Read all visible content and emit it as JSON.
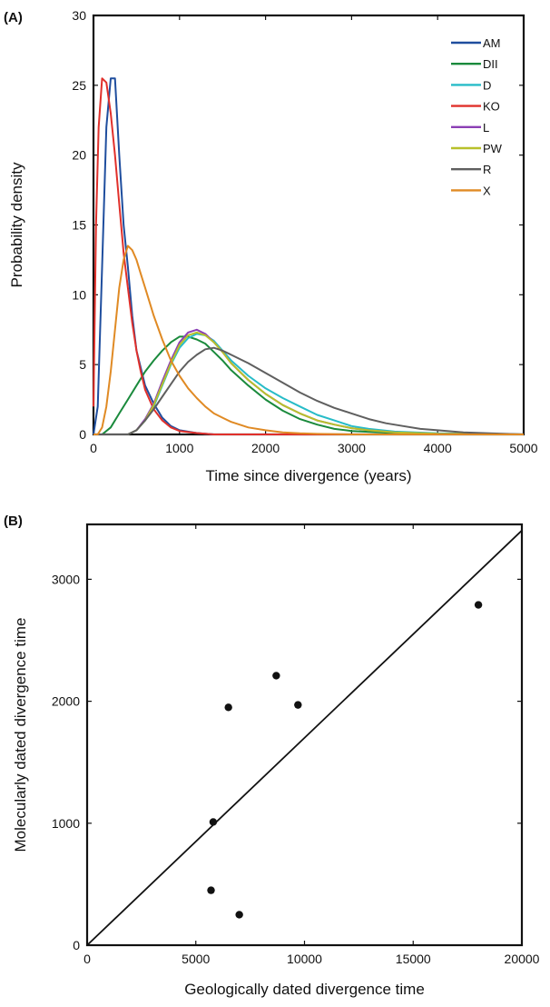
{
  "panels": {
    "a": {
      "label": "(A)"
    },
    "b": {
      "label": "(B)"
    }
  },
  "chart_data": [
    {
      "type": "line",
      "panel": "(A)",
      "title": "",
      "xlabel": "Time since divergence (years)",
      "ylabel": "Probability density",
      "xlim": [
        0,
        5000
      ],
      "ylim": [
        0,
        30
      ],
      "xticks": [
        0,
        1000,
        2000,
        3000,
        4000,
        5000
      ],
      "yticks": [
        0,
        5,
        10,
        15,
        20,
        25,
        30
      ],
      "grid": false,
      "legend_position": "top-right",
      "series": [
        {
          "name": "AM",
          "color": "#1f4e9e",
          "x": [
            0,
            50,
            100,
            150,
            200,
            250,
            300,
            350,
            400,
            450,
            500,
            600,
            700,
            800,
            900,
            1000,
            1200,
            1400,
            5000
          ],
          "y": [
            0,
            2,
            12,
            22,
            25.5,
            25.5,
            20,
            15,
            12,
            8.5,
            6,
            3.5,
            2.2,
            1.2,
            0.6,
            0.3,
            0.1,
            0,
            0
          ]
        },
        {
          "name": "DII",
          "color": "#1a8a3c",
          "x": [
            0,
            100,
            200,
            300,
            400,
            500,
            600,
            700,
            800,
            900,
            1000,
            1100,
            1200,
            1300,
            1400,
            1500,
            1600,
            1800,
            2000,
            2200,
            2400,
            2600,
            2800,
            3000,
            3500,
            4000,
            5000
          ],
          "y": [
            0,
            0,
            0.5,
            1.5,
            2.5,
            3.5,
            4.5,
            5.3,
            6.0,
            6.6,
            7.0,
            7.0,
            6.8,
            6.5,
            5.9,
            5.3,
            4.6,
            3.5,
            2.5,
            1.7,
            1.1,
            0.7,
            0.4,
            0.25,
            0.1,
            0.02,
            0
          ]
        },
        {
          "name": "D",
          "color": "#27bcc8",
          "x": [
            0,
            200,
            400,
            500,
            600,
            700,
            800,
            900,
            1000,
            1100,
            1200,
            1300,
            1400,
            1500,
            1600,
            1800,
            2000,
            2200,
            2400,
            2600,
            2800,
            3000,
            3200,
            3500,
            4000,
            5000
          ],
          "y": [
            0,
            0,
            0,
            0.3,
            1.0,
            2.0,
            3.5,
            5.0,
            6.2,
            6.9,
            7.2,
            7.1,
            6.7,
            6.0,
            5.3,
            4.2,
            3.3,
            2.6,
            2.0,
            1.4,
            1.0,
            0.6,
            0.4,
            0.2,
            0.08,
            0
          ]
        },
        {
          "name": "KO",
          "color": "#e0302b",
          "x": [
            0,
            30,
            60,
            100,
            150,
            200,
            250,
            300,
            350,
            400,
            450,
            500,
            550,
            600,
            700,
            800,
            900,
            1000,
            1200,
            1400,
            5000
          ],
          "y": [
            2,
            15,
            22,
            25.5,
            25.2,
            23,
            20,
            16.5,
            13,
            10.5,
            8,
            6,
            4.5,
            3.2,
            1.8,
            1.0,
            0.5,
            0.25,
            0.1,
            0,
            0
          ]
        },
        {
          "name": "L",
          "color": "#8b3fb5",
          "x": [
            0,
            200,
            400,
            500,
            600,
            700,
            800,
            900,
            1000,
            1100,
            1200,
            1300,
            1400,
            1500,
            1600,
            1800,
            2000,
            2200,
            2400,
            2600,
            2800,
            3000,
            3200,
            3500,
            4000,
            5000
          ],
          "y": [
            0,
            0,
            0,
            0.3,
            1.1,
            2.2,
            3.8,
            5.3,
            6.6,
            7.3,
            7.5,
            7.2,
            6.6,
            5.9,
            5.1,
            3.9,
            2.9,
            2.1,
            1.5,
            1.0,
            0.7,
            0.45,
            0.3,
            0.15,
            0.05,
            0
          ]
        },
        {
          "name": "PW",
          "color": "#b8c02a",
          "x": [
            0,
            200,
            400,
            500,
            600,
            700,
            800,
            900,
            1000,
            1100,
            1200,
            1300,
            1400,
            1500,
            1600,
            1800,
            2000,
            2200,
            2400,
            2600,
            2800,
            3000,
            3200,
            3500,
            4000,
            5000
          ],
          "y": [
            0,
            0,
            0,
            0.3,
            1.0,
            2.1,
            3.6,
            5.1,
            6.4,
            7.1,
            7.3,
            7.1,
            6.6,
            5.9,
            5.1,
            3.9,
            2.9,
            2.1,
            1.5,
            1.0,
            0.7,
            0.45,
            0.3,
            0.15,
            0.05,
            0
          ]
        },
        {
          "name": "R",
          "color": "#5f5f5f",
          "x": [
            0,
            400,
            500,
            600,
            700,
            800,
            900,
            1000,
            1100,
            1200,
            1300,
            1400,
            1500,
            1600,
            1800,
            2000,
            2200,
            2400,
            2600,
            2800,
            3000,
            3200,
            3400,
            3600,
            3800,
            4000,
            4300,
            4600,
            5000
          ],
          "y": [
            0,
            0,
            0.3,
            1.0,
            1.8,
            2.7,
            3.6,
            4.5,
            5.2,
            5.7,
            6.1,
            6.2,
            6.0,
            5.7,
            5.1,
            4.4,
            3.7,
            3.0,
            2.4,
            1.9,
            1.5,
            1.1,
            0.8,
            0.6,
            0.4,
            0.3,
            0.15,
            0.08,
            0
          ]
        },
        {
          "name": "X",
          "color": "#e08a24",
          "x": [
            0,
            50,
            100,
            150,
            200,
            250,
            300,
            350,
            400,
            450,
            500,
            550,
            600,
            700,
            800,
            900,
            1000,
            1100,
            1200,
            1300,
            1400,
            1500,
            1600,
            1800,
            2000,
            2200,
            2400,
            2600,
            3000,
            5000
          ],
          "y": [
            0,
            0,
            0.5,
            2,
            4.5,
            7.5,
            10.5,
            12.5,
            13.5,
            13.2,
            12.5,
            11.5,
            10.5,
            8.5,
            6.8,
            5.3,
            4.2,
            3.3,
            2.6,
            2.0,
            1.5,
            1.2,
            0.9,
            0.5,
            0.3,
            0.15,
            0.08,
            0.04,
            0,
            0
          ]
        }
      ]
    },
    {
      "type": "scatter",
      "panel": "(B)",
      "title": "",
      "xlabel": "Geologically dated divergence time",
      "ylabel": "Molecularly dated divergence time",
      "xlim": [
        0,
        20000
      ],
      "ylim": [
        0,
        3450
      ],
      "xticks": [
        0,
        5000,
        10000,
        15000,
        20000
      ],
      "yticks": [
        0,
        1000,
        2000,
        3000
      ],
      "grid": false,
      "points": [
        {
          "x": 5700,
          "y": 450
        },
        {
          "x": 7000,
          "y": 250
        },
        {
          "x": 5800,
          "y": 1010
        },
        {
          "x": 6500,
          "y": 1950
        },
        {
          "x": 8700,
          "y": 2210
        },
        {
          "x": 9700,
          "y": 1970
        },
        {
          "x": 18000,
          "y": 2790
        }
      ],
      "reference_line": {
        "x": [
          0,
          20000
        ],
        "y": [
          0,
          3400
        ]
      }
    }
  ]
}
